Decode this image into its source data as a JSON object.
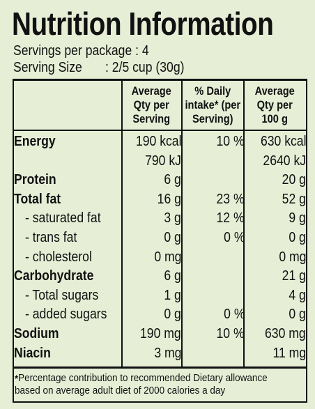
{
  "title": "Nutrition Information",
  "servings": "Servings per package : 4",
  "serving_size": {
    "label": "Serving Size",
    "value": ": 2/5 cup (30g)"
  },
  "headers": {
    "per_serving": [
      "Average",
      "Qty per",
      "Serving"
    ],
    "daily_intake": [
      "% Daily",
      "intake* (per",
      "Serving)"
    ],
    "per_100g": [
      "Average",
      "Qty per",
      "100 g"
    ]
  },
  "rows": [
    {
      "name": "Energy",
      "bold": true,
      "serving": "190 kcal",
      "daily": "10 %",
      "per100": "630 kcal"
    },
    {
      "name": "",
      "bold": false,
      "serving": "790 kJ",
      "daily": "",
      "per100": "2640 kJ"
    },
    {
      "name": "Protein",
      "bold": true,
      "serving": "6 g",
      "daily": "",
      "per100": "20 g"
    },
    {
      "name": "Total fat",
      "bold": true,
      "serving": "16 g",
      "daily": "23 %",
      "per100": "52 g"
    },
    {
      "name": "- saturated fat",
      "bold": false,
      "serving": "3 g",
      "daily": "12 %",
      "per100": "9 g"
    },
    {
      "name": "- trans fat",
      "bold": false,
      "serving": "0 g",
      "daily": "0 %",
      "per100": "0 g"
    },
    {
      "name": "- cholesterol",
      "bold": false,
      "serving": "0 mg",
      "daily": "",
      "per100": "0 mg"
    },
    {
      "name": "Carbohydrate",
      "bold": true,
      "serving": "6 g",
      "daily": "",
      "per100": "21 g"
    },
    {
      "name": "- Total sugars",
      "bold": false,
      "serving": "1 g",
      "daily": "",
      "per100": "4 g"
    },
    {
      "name": "- added sugars",
      "bold": false,
      "serving": "0 g",
      "daily": "0 %",
      "per100": "0 g"
    },
    {
      "name": "Sodium",
      "bold": true,
      "serving": "190 mg",
      "daily": "10 %",
      "per100": "630 mg"
    },
    {
      "name": "Niacin",
      "bold": true,
      "serving": "3 mg",
      "daily": "",
      "per100": "11 mg"
    }
  ],
  "footnote": {
    "mark": "*",
    "line1": "Percentage contribution to recommended Dietary allowance",
    "line2": "based on average adult diet of 2000 calories a day"
  },
  "colors": {
    "background": "#e6eed6",
    "ink": "#111111"
  }
}
